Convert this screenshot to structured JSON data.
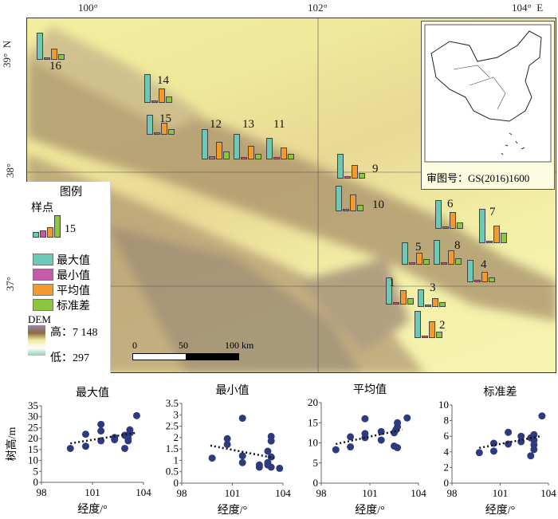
{
  "map": {
    "lon_labels": [
      "100°",
      "102°",
      "104°  E"
    ],
    "lat_labels": [
      "39°  N",
      "38°",
      "37°"
    ],
    "sites": [
      {
        "id": "16",
        "values": [
          24,
          1,
          10,
          5
        ]
      },
      {
        "id": "14",
        "values": [
          26,
          2,
          13,
          6
        ]
      },
      {
        "id": "15",
        "values": [
          18,
          1,
          11,
          5
        ]
      },
      {
        "id": "12",
        "values": [
          27,
          3,
          16,
          7
        ]
      },
      {
        "id": "13",
        "values": [
          23,
          1,
          12,
          5
        ]
      },
      {
        "id": "11",
        "values": [
          19,
          1,
          11,
          5
        ]
      },
      {
        "id": "9",
        "values": [
          22,
          1,
          12,
          5
        ]
      },
      {
        "id": "10",
        "values": [
          23,
          2,
          15,
          6
        ]
      },
      {
        "id": "6",
        "values": [
          26,
          1,
          15,
          6
        ]
      },
      {
        "id": "7",
        "values": [
          31,
          1,
          16,
          9
        ]
      },
      {
        "id": "5",
        "values": [
          20,
          1,
          11,
          5
        ]
      },
      {
        "id": "8",
        "values": [
          22,
          1,
          13,
          6
        ]
      },
      {
        "id": "4",
        "values": [
          20,
          1,
          9,
          4
        ]
      },
      {
        "id": "1",
        "values": [
          24,
          2,
          13,
          6
        ]
      },
      {
        "id": "3",
        "values": [
          16,
          1,
          8,
          4
        ]
      },
      {
        "id": "2",
        "values": [
          24,
          1,
          15,
          6
        ]
      }
    ],
    "scale": {
      "labels": [
        "0",
        "50",
        "100 km"
      ]
    },
    "inset_caption": "审图号：GS(2016)1600"
  },
  "legend": {
    "title": "图例",
    "sample_label": "样点",
    "sample_value": "15",
    "items": [
      {
        "label": "最大值",
        "color": "#6cc9b8"
      },
      {
        "label": "最小值",
        "color": "#c45aa8"
      },
      {
        "label": "平均值",
        "color": "#f39a2e"
      },
      {
        "label": "标准差",
        "color": "#8cc63e"
      }
    ],
    "dem_label": "DEM",
    "dem_high": "高：7 148",
    "dem_low": "低：297"
  },
  "chart_data": [
    {
      "type": "scatter",
      "title": "最大值",
      "xlabel": "经度/°",
      "ylabel": "树高/m",
      "xlim": [
        98,
        104
      ],
      "ylim": [
        0,
        35
      ],
      "xticks": [
        "98",
        "101",
        "104"
      ],
      "yticks": [
        "0",
        "5",
        "10",
        "15",
        "20",
        "25",
        "30",
        "35"
      ],
      "points": [
        [
          99.7,
          15.5
        ],
        [
          100.6,
          22
        ],
        [
          100.6,
          16.5
        ],
        [
          101.5,
          26.5
        ],
        [
          101.5,
          23.5
        ],
        [
          101.5,
          19
        ],
        [
          102.3,
          19.5
        ],
        [
          102.3,
          20.5
        ],
        [
          102.9,
          21.5
        ],
        [
          102.9,
          15.5
        ],
        [
          103.1,
          20
        ],
        [
          103.1,
          19
        ],
        [
          103.2,
          24
        ],
        [
          103.2,
          22.5
        ],
        [
          103.6,
          30.5
        ]
      ],
      "trend": [
        [
          99.7,
          17.8
        ],
        [
          103.5,
          22.6
        ]
      ]
    },
    {
      "type": "scatter",
      "title": "最小值",
      "xlabel": "经度/°",
      "ylabel": "",
      "xlim": [
        98,
        104
      ],
      "ylim": [
        0,
        3.5
      ],
      "xticks": [
        "98",
        "101",
        "104"
      ],
      "yticks": [
        "0",
        "0.5",
        "1",
        "1.5",
        "2",
        "2.5",
        "3",
        "3.5"
      ],
      "points": [
        [
          99.8,
          1.1
        ],
        [
          100.7,
          1.95
        ],
        [
          100.7,
          1.7
        ],
        [
          101.6,
          2.85
        ],
        [
          101.6,
          1.2
        ],
        [
          101.6,
          0.9
        ],
        [
          102.6,
          0.8
        ],
        [
          102.6,
          0.7
        ],
        [
          103.1,
          1.4
        ],
        [
          103.1,
          0.9
        ],
        [
          103.1,
          0.8
        ],
        [
          103.3,
          2.05
        ],
        [
          103.3,
          1.85
        ],
        [
          103.3,
          1.15
        ],
        [
          103.3,
          0.7
        ],
        [
          103.8,
          0.65
        ]
      ],
      "trend": [
        [
          99.7,
          1.65
        ],
        [
          103.5,
          1.1
        ]
      ]
    },
    {
      "type": "scatter",
      "title": "平均值",
      "xlabel": "经度/°",
      "ylabel": "",
      "xlim": [
        98,
        104
      ],
      "ylim": [
        0,
        20
      ],
      "xticks": [
        "98",
        "101",
        "104"
      ],
      "yticks": [
        "0",
        "5",
        "10",
        "15",
        "20"
      ],
      "points": [
        [
          98.9,
          8.3
        ],
        [
          99.8,
          11.5
        ],
        [
          99.8,
          9
        ],
        [
          100.7,
          16
        ],
        [
          100.7,
          12.3
        ],
        [
          100.7,
          11.3
        ],
        [
          101.7,
          12.8
        ],
        [
          101.7,
          10.7
        ],
        [
          102.5,
          12.5
        ],
        [
          102.5,
          9.2
        ],
        [
          102.6,
          13.2
        ],
        [
          102.7,
          15
        ],
        [
          102.7,
          14
        ],
        [
          102.7,
          8.8
        ],
        [
          103.3,
          16.2
        ]
      ],
      "trend": [
        [
          98.9,
          9.7
        ],
        [
          103,
          13.3
        ]
      ]
    },
    {
      "type": "scatter",
      "title": "标准差",
      "xlabel": "经度/°",
      "ylabel": "",
      "xlim": [
        98,
        104
      ],
      "ylim": [
        0,
        10
      ],
      "xticks": [
        "98",
        "101",
        "104"
      ],
      "yticks": [
        "0",
        "2",
        "4",
        "6",
        "8",
        "10"
      ],
      "points": [
        [
          99.7,
          3.9
        ],
        [
          100.6,
          5.1
        ],
        [
          100.6,
          4.1
        ],
        [
          101.5,
          6.5
        ],
        [
          101.5,
          5
        ],
        [
          102.3,
          6
        ],
        [
          102.3,
          5.3
        ],
        [
          102.9,
          5.8
        ],
        [
          102.9,
          3.5
        ],
        [
          103.1,
          6.2
        ],
        [
          103.1,
          5.5
        ],
        [
          103.1,
          4.9
        ],
        [
          103.1,
          4.3
        ],
        [
          103.6,
          8.6
        ]
      ],
      "trend": [
        [
          99.7,
          4.5
        ],
        [
          103.5,
          6
        ]
      ]
    }
  ]
}
